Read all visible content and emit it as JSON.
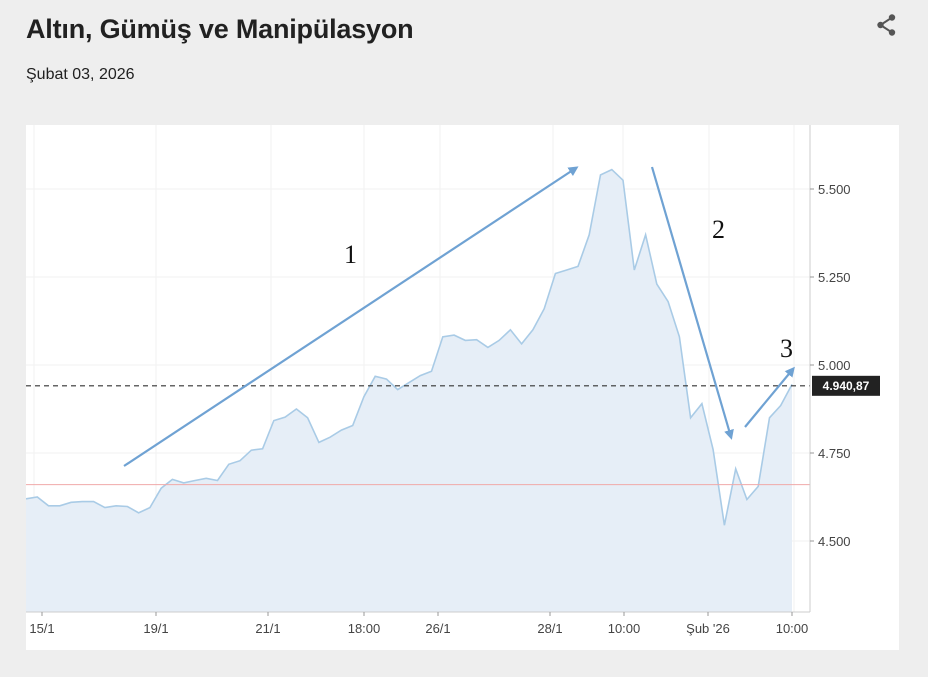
{
  "post": {
    "title": "Altın, Gümüş ve Manipülasyon",
    "date": "Şubat 03, 2026",
    "share_icon": "share-icon"
  },
  "chart_data": {
    "type": "area",
    "x_tick_labels": [
      "15/1",
      "19/1",
      "21/1",
      "18:00",
      "26/1",
      "28/1",
      "10:00",
      "Şub '26",
      "10:00"
    ],
    "y_ticks": [
      4500,
      4750,
      5000,
      5250,
      5500
    ],
    "y_tick_labels": [
      "4.500",
      "4.750",
      "5.000",
      "5.250",
      "5.500"
    ],
    "ylim": [
      4300,
      5640
    ],
    "current_price": 4940.87,
    "current_price_label": "4.940,87",
    "reference_level": 4660,
    "values": [
      4620,
      4625,
      4600,
      4600,
      4610,
      4612,
      4612,
      4595,
      4600,
      4598,
      4580,
      4595,
      4650,
      4675,
      4665,
      4672,
      4678,
      4672,
      4718,
      4728,
      4758,
      4762,
      4842,
      4852,
      4875,
      4850,
      4780,
      4795,
      4815,
      4828,
      4910,
      4968,
      4960,
      4930,
      4950,
      4970,
      4982,
      5080,
      5085,
      5070,
      5072,
      5050,
      5070,
      5100,
      5060,
      5100,
      5160,
      5260,
      5270,
      5280,
      5370,
      5540,
      5555,
      5525,
      5270,
      5370,
      5230,
      5180,
      5080,
      4850,
      4890,
      4760,
      4545,
      4705,
      4618,
      4655,
      4850,
      4885,
      4945
    ],
    "annotations": [
      "1",
      "2",
      "3"
    ],
    "colors": {
      "line": "#a9cbe6",
      "fill": "#e6eef7",
      "arrow": "#6fa2d3",
      "reference": "#f0a9a9",
      "price_box": "#222222"
    },
    "grid": true
  }
}
